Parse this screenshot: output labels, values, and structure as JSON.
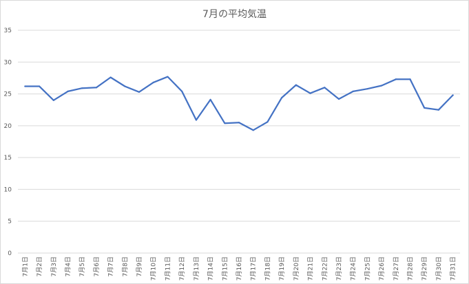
{
  "chart_data": {
    "type": "line",
    "title": "7月の平均気温",
    "xlabel": "",
    "ylabel": "",
    "ylim": [
      0,
      35
    ],
    "yticks": [
      0,
      5,
      10,
      15,
      20,
      25,
      30,
      35
    ],
    "grid": true,
    "legend": "none",
    "line_color": "#4472c4",
    "categories": [
      "7月1日",
      "7月2日",
      "7月3日",
      "7月4日",
      "7月5日",
      "7月6日",
      "7月7日",
      "7月8日",
      "7月9日",
      "7月10日",
      "7月11日",
      "7月12日",
      "7月13日",
      "7月14日",
      "7月15日",
      "7月16日",
      "7月17日",
      "7月18日",
      "7月19日",
      "7月20日",
      "7月21日",
      "7月22日",
      "7月23日",
      "7月24日",
      "7月25日",
      "7月26日",
      "7月27日",
      "7月28日",
      "7月29日",
      "7月30日",
      "7月31日"
    ],
    "values": [
      26.2,
      26.2,
      24.0,
      25.4,
      25.9,
      26.0,
      27.6,
      26.2,
      25.3,
      26.8,
      27.7,
      25.4,
      20.9,
      24.1,
      20.4,
      20.5,
      19.3,
      20.6,
      24.4,
      26.4,
      25.1,
      26.0,
      24.2,
      25.4,
      25.8,
      26.3,
      27.3,
      27.3,
      22.8,
      22.5,
      24.8
    ]
  }
}
